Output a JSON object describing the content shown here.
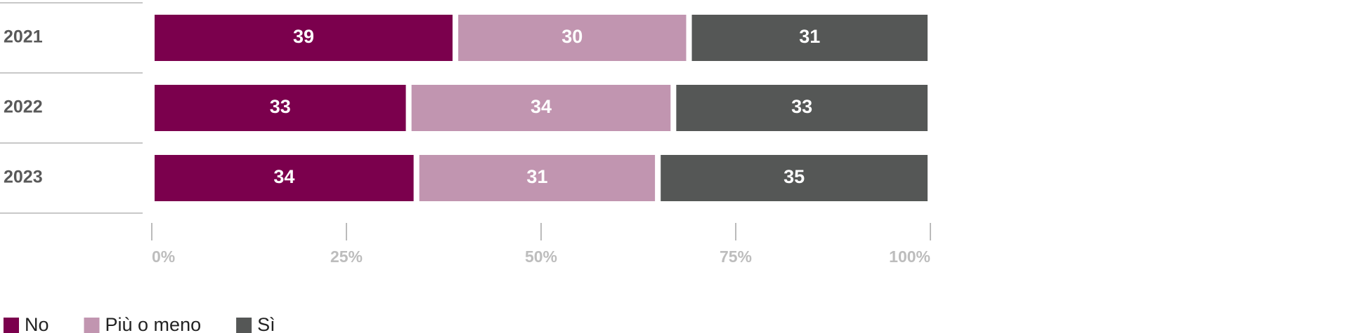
{
  "chart_data": {
    "type": "stacked-bar",
    "orientation": "horizontal",
    "categories": [
      "2021",
      "2022",
      "2023"
    ],
    "series": [
      {
        "name": "No",
        "color": "#7b004d",
        "values": [
          39,
          33,
          34
        ]
      },
      {
        "name": "Più o meno",
        "color": "#c195b0",
        "values": [
          30,
          34,
          31
        ]
      },
      {
        "name": "Sì",
        "color": "#555756",
        "values": [
          31,
          33,
          35
        ]
      }
    ],
    "xlim": [
      0,
      100
    ],
    "xticks": [
      {
        "value": 0,
        "label": "0%"
      },
      {
        "value": 25,
        "label": "25%"
      },
      {
        "value": 50,
        "label": "50%"
      },
      {
        "value": 75,
        "label": "75%"
      },
      {
        "value": 100,
        "label": "100%"
      }
    ],
    "legend": "bottom-left"
  }
}
